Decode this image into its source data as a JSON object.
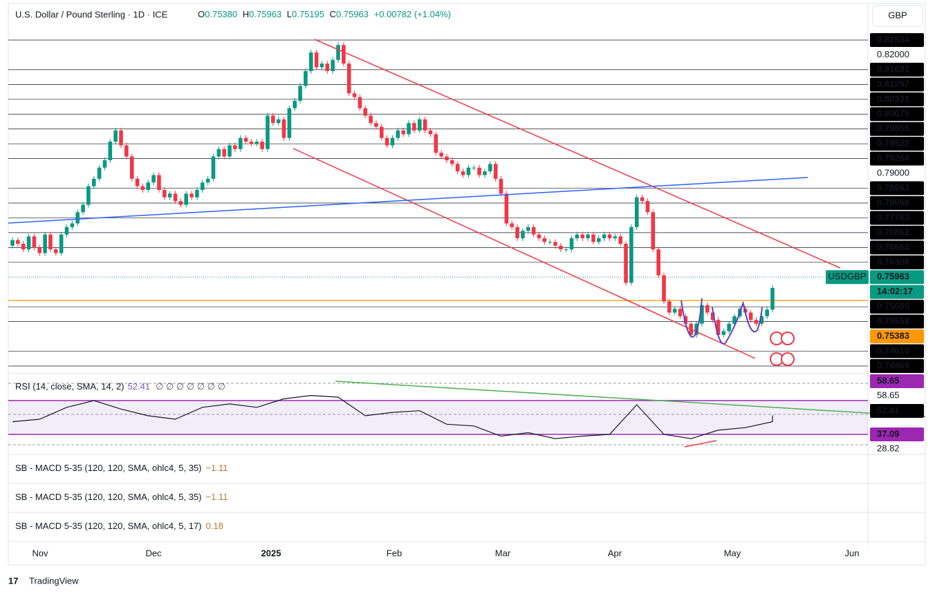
{
  "header": {
    "symbol": "U.S. Dollar / Pound Sterling · 1D · ICE",
    "open_label": "O",
    "open": "0.75380",
    "high_label": "H",
    "high": "0.75963",
    "low_label": "L",
    "low": "0.75195",
    "close_label": "C",
    "close": "0.75963",
    "change": "+0.00782 (+1.04%)",
    "currency": "GBP"
  },
  "price_scale": [
    {
      "label": "0.82634",
      "style": "level"
    },
    {
      "label": "0.82000",
      "style": "plain"
    },
    {
      "label": "0.81631",
      "style": "level"
    },
    {
      "label": "0.81297",
      "style": "level"
    },
    {
      "label": "0.80331",
      "style": "level"
    },
    {
      "label": "0.80075",
      "style": "level"
    },
    {
      "label": "0.79855",
      "style": "level"
    },
    {
      "label": "0.79522",
      "style": "level"
    },
    {
      "label": "0.79264",
      "style": "level"
    },
    {
      "label": "0.79000",
      "style": "plain"
    },
    {
      "label": "0.78653",
      "style": "level"
    },
    {
      "label": "0.78068",
      "style": "level"
    },
    {
      "label": "0.77763",
      "style": "level"
    },
    {
      "label": "0.76862",
      "style": "level"
    },
    {
      "label": "0.76664",
      "style": "level"
    },
    {
      "label": "0.76308",
      "style": "level"
    },
    {
      "label": "0.75963",
      "style": "current",
      "tag": "USDGBP"
    },
    {
      "label": "14:02:17",
      "style": "countdown"
    },
    {
      "label": "0.75680",
      "style": "level"
    },
    {
      "label": "0.75558",
      "style": "level"
    },
    {
      "label": "0.75383",
      "style": "orange"
    },
    {
      "label": "0.74618",
      "style": "level"
    },
    {
      "label": "0.74469",
      "style": "level"
    }
  ],
  "closes": [
    0.7725,
    0.7715,
    0.77,
    0.7735,
    0.7705,
    0.769,
    0.774,
    0.77,
    0.769,
    0.774,
    0.776,
    0.777,
    0.78,
    0.782,
    0.787,
    0.789,
    0.792,
    0.794,
    0.799,
    0.802,
    0.798,
    0.795,
    0.789,
    0.787,
    0.786,
    0.788,
    0.79,
    0.786,
    0.784,
    0.785,
    0.783,
    0.782,
    0.785,
    0.784,
    0.786,
    0.788,
    0.789,
    0.795,
    0.797,
    0.795,
    0.798,
    0.797,
    0.8,
    0.799,
    0.7985,
    0.799,
    0.797,
    0.806,
    0.804,
    0.805,
    0.8,
    0.808,
    0.81,
    0.814,
    0.818,
    0.823,
    0.819,
    0.82,
    0.818,
    0.821,
    0.825,
    0.82,
    0.812,
    0.811,
    0.808,
    0.806,
    0.804,
    0.803,
    0.8,
    0.798,
    0.8,
    0.802,
    0.801,
    0.804,
    0.802,
    0.805,
    0.802,
    0.801,
    0.796,
    0.795,
    0.794,
    0.793,
    0.791,
    0.79,
    0.792,
    0.792,
    0.79,
    0.791,
    0.793,
    0.789,
    0.785,
    0.777,
    0.776,
    0.773,
    0.775,
    0.776,
    0.774,
    0.773,
    0.772,
    0.772,
    0.771,
    0.77,
    0.77,
    0.773,
    0.774,
    0.773,
    0.774,
    0.772,
    0.773,
    0.774,
    0.773,
    0.7735,
    0.7715,
    0.761,
    0.776,
    0.784,
    0.783,
    0.78,
    0.77,
    0.763,
    0.756,
    0.753,
    0.754,
    0.752,
    0.75,
    0.747,
    0.75,
    0.755,
    0.753,
    0.751,
    0.747,
    0.748,
    0.75,
    0.752,
    0.754,
    0.753,
    0.751,
    0.75,
    0.752,
    0.7538,
    0.75963
  ],
  "first_open": 0.771,
  "rsi": {
    "title": "RSI (14, close, SMA, 14, 2)",
    "value": "52.41",
    "placeholders": "∅ ∅ ∅ ∅ ∅ ∅ ∅",
    "weekly": [
      45,
      48,
      62,
      70,
      60,
      52,
      48,
      62,
      66,
      62,
      72,
      76,
      74,
      52,
      56,
      58,
      42,
      40,
      28,
      32,
      25,
      28,
      30,
      65,
      30,
      25,
      35,
      38,
      45,
      52.41
    ],
    "scale": [
      {
        "label": "58.65",
        "style": "purple"
      },
      {
        "label": "58.65",
        "style": "plain"
      },
      {
        "label": "52.41",
        "style": "black"
      },
      {
        "label": "37.09",
        "style": "purple"
      },
      {
        "label": "28.82",
        "style": "plain"
      }
    ]
  },
  "indicators": [
    {
      "name": "SB - MACD 5-35 (120, 120, SMA, ohlc4, 5, 35)",
      "value": "−1.11"
    },
    {
      "name": "SB - MACD 5-35 (120, 120, SMA, ohlc4, 5, 35)",
      "value": "−1.11"
    },
    {
      "name": "SB - MACD 5-35 (120, 120, SMA, ohlc4, 5, 17)",
      "value": "0.18"
    }
  ],
  "time_axis": [
    "Nov",
    "Dec",
    "2025",
    "Feb",
    "Mar",
    "Apr",
    "May",
    "Jun"
  ],
  "brand": "TradingView"
}
